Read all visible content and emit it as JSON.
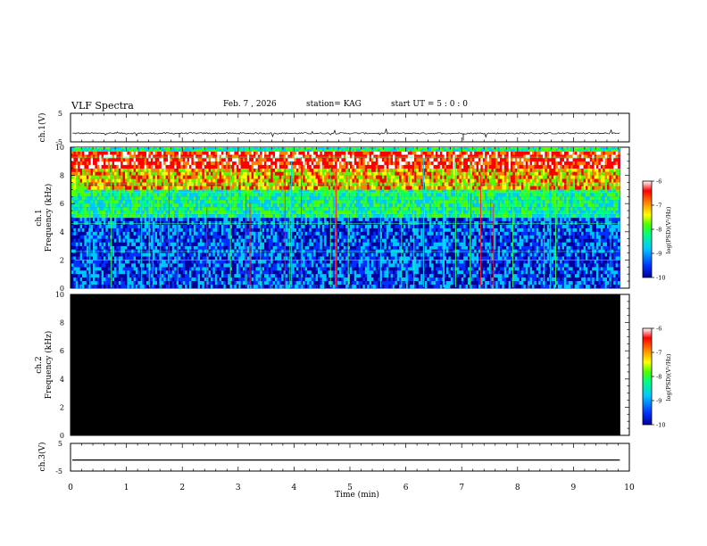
{
  "header": {
    "title": "VLF Spectra",
    "date": "Feb. 7 , 2026",
    "station": "station= KAG",
    "start": "start  UT =  5 : 0  : 0"
  },
  "chart_data": [
    {
      "type": "line",
      "panel": "ch1-waveform",
      "ylabel": "ch.1(V)",
      "ylim": [
        -5,
        5
      ],
      "yticks": [
        "5",
        "-5"
      ],
      "xlim": [
        0,
        10
      ],
      "description_value": "flat trace near -2 V with sparse spikes",
      "level": -2
    },
    {
      "type": "heatmap",
      "panel": "ch1-spectrogram",
      "ylabel": "ch.1",
      "ylabel2": "Frequency (kHz)",
      "ylim": [
        0,
        10
      ],
      "yticks": [
        "0",
        "2",
        "4",
        "6",
        "8",
        "10"
      ],
      "xlim": [
        0,
        9.83
      ],
      "colorbar": {
        "label": "log(PSD)(V²/Hz)",
        "range": [
          -10,
          -6
        ],
        "ticks": [
          "-6",
          "-7",
          "-8",
          "-9",
          "-10"
        ],
        "colors": [
          "#00009a",
          "#0030ff",
          "#00c8ff",
          "#00ff80",
          "#50ff00",
          "#ffff00",
          "#ff8000",
          "#ff0000",
          "#ffffff"
        ]
      }
    },
    {
      "type": "heatmap",
      "panel": "ch2-spectrogram",
      "ylabel": "ch.2",
      "ylabel2": "Frequency (kHz)",
      "ylim": [
        0,
        10
      ],
      "yticks": [
        "0",
        "2",
        "4",
        "6",
        "8",
        "10"
      ],
      "xlim": [
        0,
        9.83
      ],
      "fill": "#000000",
      "colorbar": {
        "label": "log(PSD)(V²/Hz)",
        "range": [
          -10,
          -6
        ],
        "ticks": [
          "-6",
          "-7",
          "-8",
          "-9",
          "-10"
        ]
      }
    },
    {
      "type": "line",
      "panel": "ch3-waveform",
      "ylabel": "ch.3(V)",
      "ylim": [
        -5,
        5
      ],
      "yticks": [
        "5",
        "-5"
      ],
      "xlim": [
        0,
        10
      ],
      "level": -1
    }
  ],
  "xaxis": {
    "label": "Time (min)",
    "ticks": [
      "0",
      "1",
      "2",
      "3",
      "4",
      "5",
      "6",
      "7",
      "8",
      "9",
      "10"
    ]
  }
}
